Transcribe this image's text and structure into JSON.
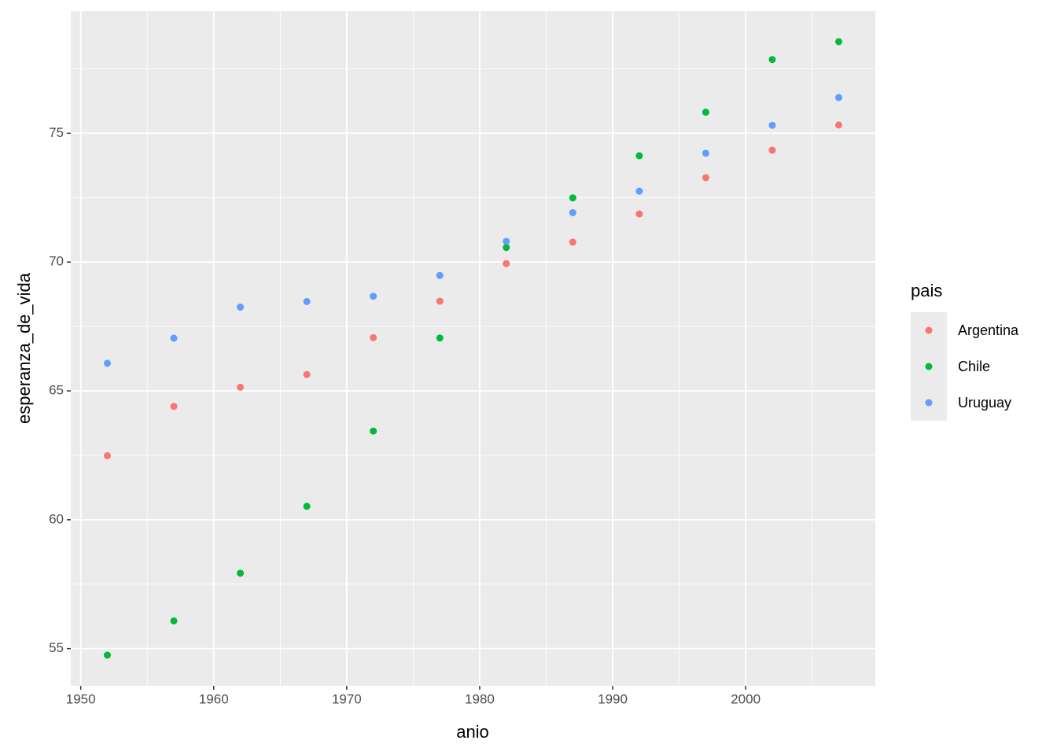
{
  "chart_data": {
    "type": "scatter",
    "x_label": "anio",
    "y_label": "esperanza_de_vida",
    "legend_title": "pais",
    "legend_position": "right",
    "grid": true,
    "x": [
      1952,
      1957,
      1962,
      1967,
      1972,
      1977,
      1982,
      1987,
      1992,
      1997,
      2002,
      2007
    ],
    "series": [
      {
        "name": "Argentina",
        "color": "#F8766D",
        "values": [
          62.485,
          64.399,
          65.142,
          65.634,
          67.065,
          68.481,
          69.942,
          70.774,
          71.868,
          73.275,
          74.34,
          75.32
        ]
      },
      {
        "name": "Chile",
        "color": "#00BA38",
        "values": [
          54.745,
          56.074,
          57.924,
          60.523,
          63.441,
          67.052,
          70.565,
          72.492,
          74.126,
          75.816,
          77.86,
          78.553
        ]
      },
      {
        "name": "Uruguay",
        "color": "#619CFF",
        "values": [
          66.071,
          67.044,
          68.253,
          68.468,
          68.673,
          69.481,
          70.805,
          71.918,
          72.752,
          74.223,
          75.307,
          76.384
        ]
      }
    ],
    "xlim": [
      1949.25,
      2009.75
    ],
    "xticks": [
      1950,
      1960,
      1970,
      1980,
      1990,
      2000
    ],
    "ylim": [
      53.555,
      79.743
    ],
    "yticks": [
      55,
      60,
      65,
      70,
      75
    ]
  }
}
